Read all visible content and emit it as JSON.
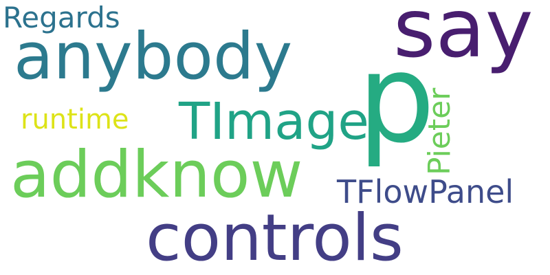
{
  "words": [
    {
      "key": "say",
      "text": "say",
      "color": "#481e6f"
    },
    {
      "key": "regards",
      "text": "Regards",
      "color": "#2c728e"
    },
    {
      "key": "anybody",
      "text": "anybody",
      "color": "#2c7a8e"
    },
    {
      "key": "p",
      "text": "p",
      "color": "#25ab82"
    },
    {
      "key": "pieter",
      "text": "Pieter",
      "color": "#6ccd5a"
    },
    {
      "key": "timage",
      "text": "TImage",
      "color": "#20a386"
    },
    {
      "key": "runtime",
      "text": "runtime",
      "color": "#dde318"
    },
    {
      "key": "addknow",
      "text": "addknow",
      "color": "#6ccd5a"
    },
    {
      "key": "tflowpanel",
      "text": "TFlowPanel",
      "color": "#3e4c8a"
    },
    {
      "key": "controls",
      "text": "controls",
      "color": "#433e85"
    }
  ]
}
